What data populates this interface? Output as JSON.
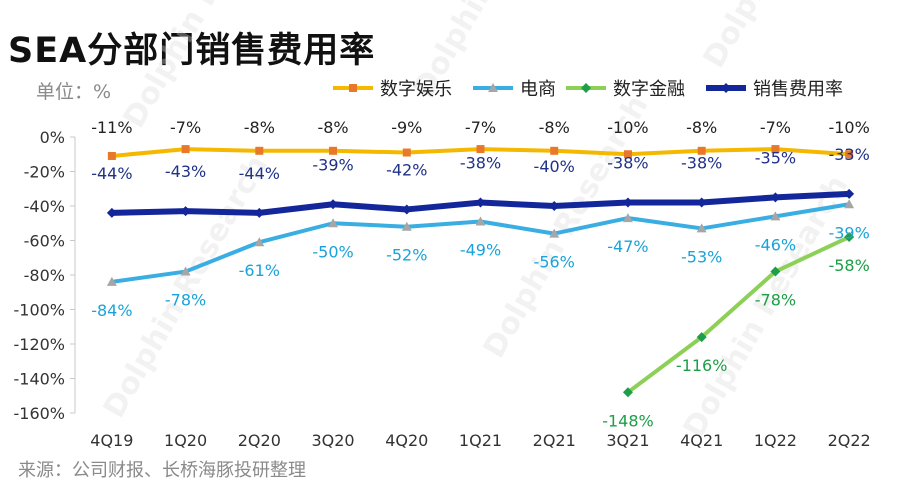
{
  "chart_data": {
    "type": "line",
    "title": "SEA分部门销售费用率",
    "unit_label": "单位：%",
    "source": "来源：公司财报、长桥海豚投研整理",
    "categories": [
      "4Q19",
      "1Q20",
      "2Q20",
      "3Q20",
      "4Q20",
      "1Q21",
      "2Q21",
      "3Q21",
      "4Q21",
      "1Q22",
      "2Q22"
    ],
    "y_ticks": [
      "0%",
      "-20%",
      "-40%",
      "-60%",
      "-80%",
      "-100%",
      "-120%",
      "-140%",
      "-160%"
    ],
    "ylim": [
      -160,
      0
    ],
    "legend_position": "top-right",
    "series": [
      {
        "name": "数字娱乐",
        "color": "#F5B800",
        "marker": "square",
        "marker_color": "#E8792A",
        "label_color": "#222222",
        "label_position": "top",
        "values": [
          -11,
          -7,
          -8,
          -8,
          -9,
          -7,
          -8,
          -10,
          -8,
          -7,
          -10
        ],
        "labels": [
          "-11%",
          "-7%",
          "-8%",
          "-8%",
          "-9%",
          "-7%",
          "-8%",
          "-10%",
          "-8%",
          "-7%",
          "-10%"
        ]
      },
      {
        "name": "电商",
        "color": "#3AAEE3",
        "marker": "triangle",
        "marker_color": "#A6A6A6",
        "label_color": "#1AA3DA",
        "label_position": "below",
        "values": [
          -84,
          -78,
          -61,
          -50,
          -52,
          -49,
          -56,
          -47,
          -53,
          -46,
          -39
        ],
        "labels": [
          "-84%",
          "-78%",
          "-61%",
          "-50%",
          "-52%",
          "-49%",
          "-56%",
          "-47%",
          "-53%",
          "-46%",
          "-39%"
        ]
      },
      {
        "name": "数字金融",
        "color": "#8DD058",
        "marker": "diamond",
        "marker_color": "#1E9E48",
        "label_color": "#1E9E48",
        "label_position": "below",
        "values": [
          null,
          null,
          null,
          null,
          null,
          null,
          null,
          -148,
          -116,
          -78,
          -58
        ],
        "labels": [
          "",
          "",
          "",
          "",
          "",
          "",
          "",
          "-148%",
          "-116%",
          "-78%",
          "-58%"
        ]
      },
      {
        "name": "销售费用率",
        "color": "#13279A",
        "marker": "diamond",
        "marker_color": "#13279A",
        "label_color": "#1F3288",
        "label_position": "above",
        "values": [
          -44,
          -43,
          -44,
          -39,
          -42,
          -38,
          -40,
          -38,
          -38,
          -35,
          -33
        ],
        "labels": [
          "-44%",
          "-43%",
          "-44%",
          "-39%",
          "-42%",
          "-38%",
          "-40%",
          "-38%",
          "-38%",
          "-35%",
          "-33%"
        ]
      }
    ]
  }
}
